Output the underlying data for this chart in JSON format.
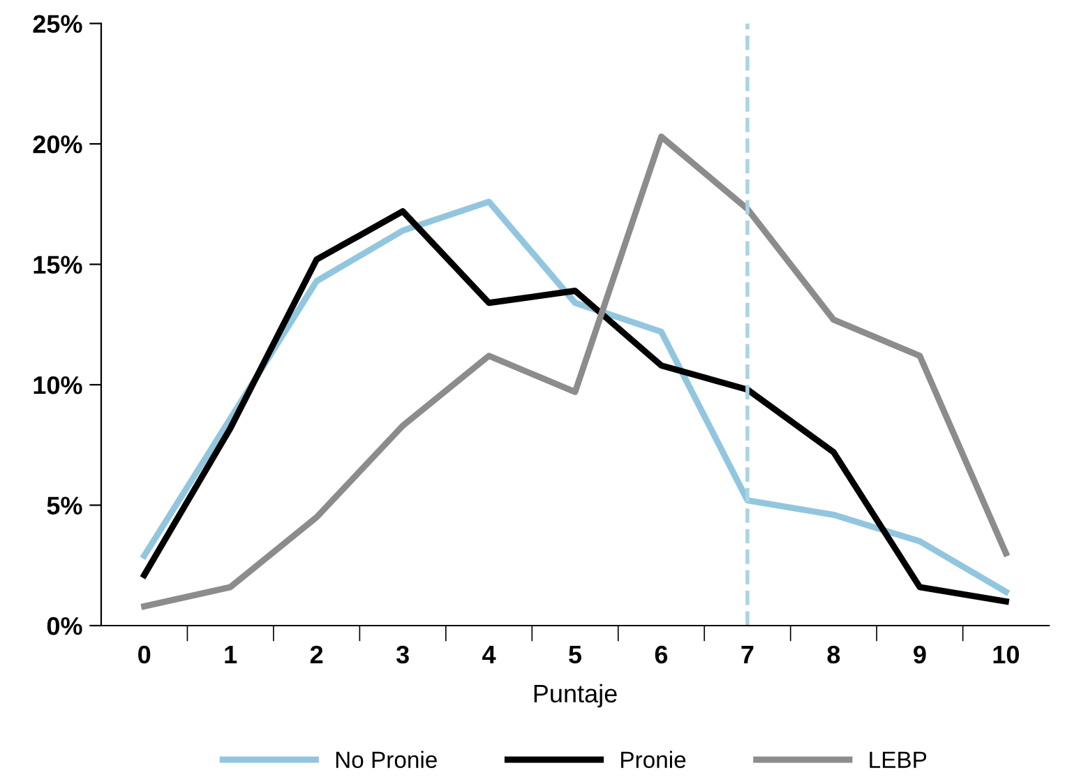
{
  "chart_data": {
    "type": "line",
    "xlabel": "Puntaje",
    "categories": [
      "0",
      "1",
      "2",
      "3",
      "4",
      "5",
      "6",
      "7",
      "8",
      "9",
      "10"
    ],
    "series": [
      {
        "name": "No Pronie",
        "color": "#92c6df",
        "values": [
          2.9,
          8.6,
          14.3,
          16.4,
          17.6,
          13.4,
          12.2,
          5.2,
          4.6,
          3.5,
          1.4
        ]
      },
      {
        "name": "Pronie",
        "color": "#000000",
        "values": [
          2.1,
          8.2,
          15.2,
          17.2,
          13.4,
          13.9,
          10.8,
          9.8,
          7.2,
          1.6,
          1.0
        ]
      },
      {
        "name": "LEBP",
        "color": "#8c8c8c",
        "values": [
          0.8,
          1.6,
          4.5,
          8.3,
          11.2,
          9.7,
          20.3,
          17.3,
          12.7,
          11.2,
          3.0
        ]
      }
    ],
    "ylim": [
      0,
      25
    ],
    "yticks": [
      {
        "value": 0,
        "label": "0%"
      },
      {
        "value": 5,
        "label": "5%"
      },
      {
        "value": 10,
        "label": "10%"
      },
      {
        "value": 15,
        "label": "15%"
      },
      {
        "value": 20,
        "label": "20%"
      },
      {
        "value": 25,
        "label": "25%"
      }
    ],
    "ref_lines": [
      {
        "axis": "x",
        "value": "7",
        "color": "#aad3e8",
        "line_style": "dashed"
      }
    ],
    "grid": false,
    "legend": "bottom",
    "marker": "none",
    "line_style": "solid"
  }
}
